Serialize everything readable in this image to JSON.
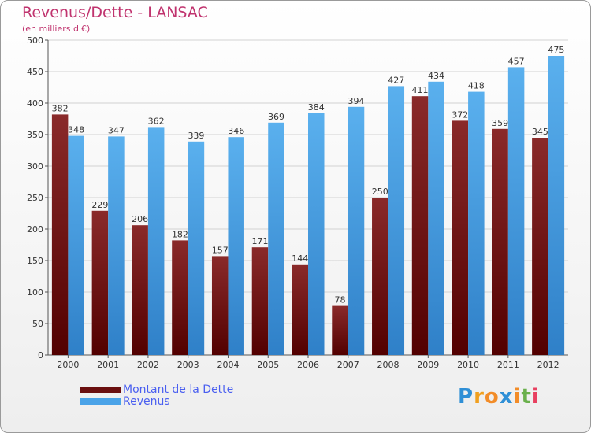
{
  "title": "Revenus/Dette - LANSAC",
  "subtitle": "(en milliers d'€)",
  "logo": [
    "P",
    "r",
    "o",
    "x",
    "i",
    "t",
    "i"
  ],
  "logo_colors": [
    "#2f8fd6",
    "#f0a020",
    "#f28c28",
    "#2f8fd6",
    "#f28c28",
    "#6ab04c",
    "#e84060"
  ],
  "chart_data": {
    "type": "bar",
    "categories": [
      "2000",
      "2001",
      "2002",
      "2003",
      "2004",
      "2005",
      "2006",
      "2007",
      "2008",
      "2009",
      "2010",
      "2011",
      "2012"
    ],
    "series": [
      {
        "name": "Montant de la Dette",
        "color": "#7a1a1a",
        "values": [
          382,
          229,
          206,
          182,
          157,
          171,
          144,
          78,
          250,
          411,
          372,
          359,
          345
        ]
      },
      {
        "name": "Revenus",
        "color": "#4aa3e8",
        "values": [
          348,
          347,
          362,
          339,
          346,
          369,
          384,
          394,
          427,
          434,
          418,
          457,
          475
        ]
      }
    ],
    "ylim": [
      0,
      500
    ],
    "yticks": [
      0,
      50,
      100,
      150,
      200,
      250,
      300,
      350,
      400,
      450,
      500
    ],
    "grid": true,
    "legend": "bottom-left"
  }
}
